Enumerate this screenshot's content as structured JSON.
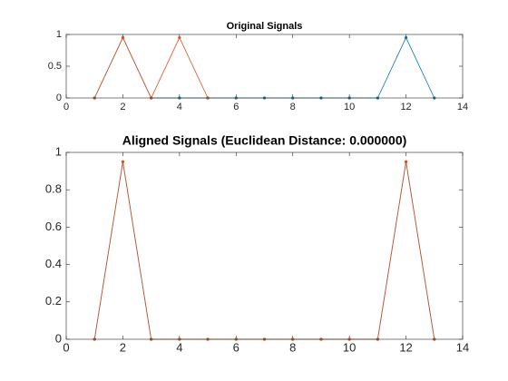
{
  "chart_data": [
    {
      "type": "line",
      "title": "Original Signals",
      "xlim": [
        0,
        14
      ],
      "xticks": [
        0,
        2,
        4,
        6,
        8,
        10,
        12,
        14
      ],
      "ylim": [
        0,
        1
      ],
      "yticks": [
        0,
        0.5,
        1
      ],
      "series": [
        {
          "color": "#0072bd",
          "x": [
            1,
            2,
            3,
            4,
            5,
            6,
            7,
            8,
            9,
            10,
            11,
            12,
            13
          ],
          "values": [
            0,
            0.95,
            0,
            0,
            0,
            0,
            0,
            0,
            0,
            0,
            0,
            0.95,
            0
          ]
        },
        {
          "color": "#d95319",
          "x": [
            1,
            2,
            3,
            4,
            5
          ],
          "values": [
            0,
            0.95,
            0,
            0.95,
            0
          ]
        }
      ]
    },
    {
      "type": "line",
      "title": "Aligned Signals (Euclidean Distance: 0.000000)",
      "xlim": [
        0,
        14
      ],
      "xticks": [
        0,
        2,
        4,
        6,
        8,
        10,
        12,
        14
      ],
      "ylim": [
        0,
        1
      ],
      "yticks": [
        0,
        0.2,
        0.4,
        0.6,
        0.8,
        1
      ],
      "series": [
        {
          "color": "#0072bd",
          "x": [
            1,
            2,
            3,
            4,
            5,
            6,
            7,
            8,
            9,
            10,
            11,
            12,
            13
          ],
          "values": [
            0,
            0.95,
            0,
            0,
            0,
            0,
            0,
            0,
            0,
            0,
            0,
            0.95,
            0
          ]
        },
        {
          "color": "#d95319",
          "x": [
            1,
            2,
            3,
            4,
            5,
            6,
            7,
            8,
            9,
            10,
            11,
            12,
            13
          ],
          "values": [
            0,
            0.95,
            0,
            0,
            0,
            0,
            0,
            0,
            0,
            0,
            0,
            0.95,
            0
          ]
        }
      ]
    }
  ]
}
